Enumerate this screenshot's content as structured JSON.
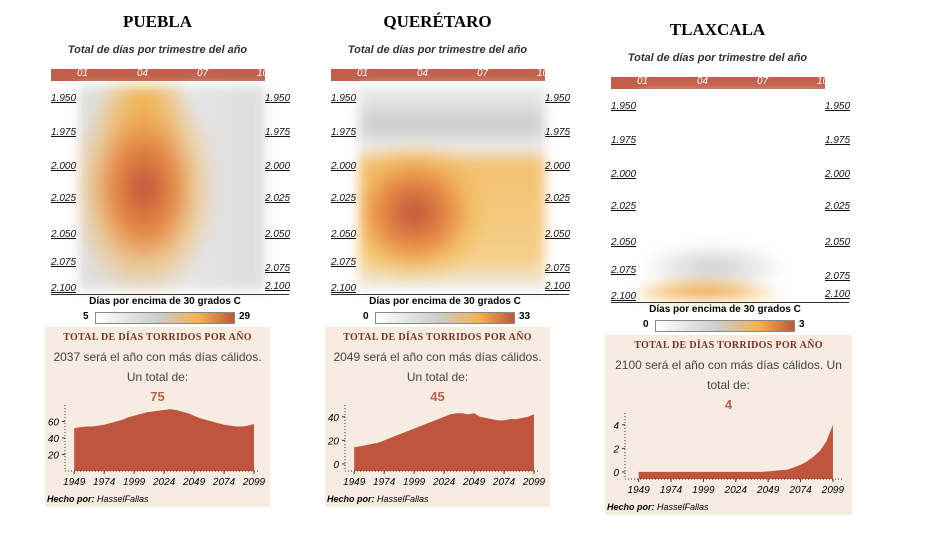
{
  "panels": [
    {
      "title": "PUEBLA",
      "subtitle": "Total de días por trimestre del año",
      "quarters": [
        "01",
        "04",
        "07",
        "10"
      ],
      "years_left": [
        "1.950",
        "1.975",
        "2.000",
        "2.025",
        "2.050",
        "2.075",
        "2.100"
      ],
      "years_right": [
        "1.950",
        "1.975",
        "2.000",
        "2.025",
        "2.050",
        "2.075",
        "2.100"
      ],
      "legend_label": "Días por encima de 30 grados C",
      "legend_min": 5,
      "legend_max": 29,
      "box_title": "TOTAL DE DÍAS TORRIDOS POR AÑO",
      "text": "2037 será el año con más días cálidos. Un total de:",
      "max_value": 75,
      "chart_data": {
        "type": "area",
        "color": "#c0553d",
        "x": [
          1949,
          1954,
          1959,
          1964,
          1969,
          1974,
          1979,
          1984,
          1989,
          1994,
          1999,
          2004,
          2009,
          2014,
          2019,
          2024,
          2029,
          2034,
          2039,
          2044,
          2049,
          2054,
          2059,
          2064,
          2069,
          2074,
          2079,
          2084,
          2089,
          2094,
          2099
        ],
        "values": [
          52,
          53,
          54,
          54,
          55,
          56,
          58,
          60,
          62,
          65,
          67,
          69,
          71,
          72,
          73,
          74,
          75,
          74,
          72,
          70,
          67,
          64,
          62,
          60,
          58,
          56,
          55,
          54,
          54,
          55,
          57
        ],
        "xlim": [
          1943,
          2104
        ],
        "ylim": [
          0,
          80
        ],
        "yticks": [
          20,
          40,
          60
        ],
        "xticks": [
          1949,
          1974,
          1999,
          2024,
          2049,
          2074,
          2099
        ]
      },
      "credit_label": "Hecho por:",
      "credit_name": "HasselFallas"
    },
    {
      "title": "QUERÉTARO",
      "subtitle": "Total de días por trimestre del año",
      "quarters": [
        "01",
        "04",
        "07",
        "10"
      ],
      "years_left": [
        "1.950",
        "1.975",
        "2.000",
        "2.025",
        "2.050",
        "2.075",
        "2.100"
      ],
      "years_right": [
        "1.950",
        "1.975",
        "2.000",
        "2.025",
        "2.050",
        "2.075",
        "2.100"
      ],
      "legend_label": "Días por encima de 30 grados C",
      "legend_min": 0,
      "legend_max": 33,
      "box_title": "TOTAL DE DÍAS TORRIDOS POR AÑO",
      "text": "2049 será el año con más días cálidos. Un total de:",
      "max_value": 45,
      "chart_data": {
        "type": "area",
        "color": "#c0553d",
        "x": [
          1949,
          1954,
          1959,
          1964,
          1969,
          1974,
          1979,
          1984,
          1989,
          1994,
          1999,
          2004,
          2009,
          2014,
          2019,
          2024,
          2029,
          2034,
          2039,
          2044,
          2049,
          2054,
          2059,
          2064,
          2069,
          2074,
          2079,
          2084,
          2089,
          2094,
          2099
        ],
        "values": [
          14,
          15,
          16,
          17,
          18,
          20,
          22,
          24,
          26,
          28,
          30,
          32,
          34,
          36,
          38,
          40,
          42,
          43,
          43,
          42,
          43,
          40,
          39,
          38,
          37,
          37,
          38,
          38,
          39,
          40,
          42
        ],
        "xlim": [
          1943,
          2104
        ],
        "ylim": [
          -6,
          50
        ],
        "yticks": [
          0,
          20,
          40
        ],
        "xticks": [
          1949,
          1974,
          1999,
          2024,
          2049,
          2074,
          2099
        ]
      },
      "credit_label": "Hecho por:",
      "credit_name": "HasselFallas"
    },
    {
      "title": "TLAXCALA",
      "subtitle": "Total de días por trimestre del año",
      "quarters": [
        "01",
        "04",
        "07",
        "10"
      ],
      "years_left": [
        "1.950",
        "1.975",
        "2.000",
        "2.025",
        "2.050",
        "2.075",
        "2.100"
      ],
      "years_right": [
        "1.950",
        "1.975",
        "2.000",
        "2.025",
        "2.050",
        "2.075",
        "2.100"
      ],
      "legend_label": "Días por encima de 30 grados C",
      "legend_min": 0,
      "legend_max": 3,
      "box_title": "TOTAL DE DÍAS TORRIDOS POR AÑO",
      "text": "2100 será el año con más días cálidos. Un total de:",
      "max_value": 4,
      "chart_data": {
        "type": "area",
        "color": "#c0553d",
        "x": [
          1949,
          1954,
          1959,
          1964,
          1969,
          1974,
          1979,
          1984,
          1989,
          1994,
          1999,
          2004,
          2009,
          2014,
          2019,
          2024,
          2029,
          2034,
          2039,
          2044,
          2049,
          2054,
          2059,
          2064,
          2069,
          2074,
          2079,
          2084,
          2089,
          2094,
          2099
        ],
        "values": [
          0,
          0,
          0,
          0,
          0,
          0,
          0,
          0,
          0,
          0,
          0,
          0,
          0,
          0,
          0,
          0,
          0,
          0,
          0,
          0,
          0.05,
          0.1,
          0.15,
          0.2,
          0.4,
          0.6,
          0.9,
          1.3,
          1.8,
          2.6,
          4
        ],
        "xlim": [
          1940,
          2106
        ],
        "ylim": [
          -0.6,
          5
        ],
        "yticks": [
          0,
          2,
          4
        ],
        "xticks": [
          1949,
          1974,
          1999,
          2024,
          2049,
          2074,
          2099
        ]
      },
      "credit_label": "Hecho por:",
      "credit_name": "HasselFallas"
    }
  ]
}
